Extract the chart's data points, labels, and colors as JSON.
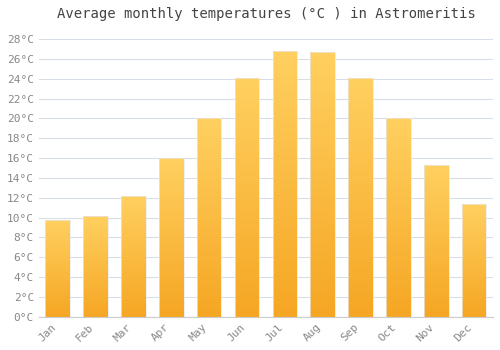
{
  "title": "Average monthly temperatures (°C ) in Astromeritis",
  "months": [
    "Jan",
    "Feb",
    "Mar",
    "Apr",
    "May",
    "Jun",
    "Jul",
    "Aug",
    "Sep",
    "Oct",
    "Nov",
    "Dec"
  ],
  "values": [
    9.8,
    10.2,
    12.2,
    16.0,
    20.0,
    24.1,
    26.8,
    26.7,
    24.1,
    20.0,
    15.3,
    11.4
  ],
  "bar_color_bottom": "#F5A623",
  "bar_color_top": "#FFD060",
  "bar_edge_color": "#E8E8E8",
  "background_color": "#ffffff",
  "plot_bg_color": "#ffffff",
  "grid_color": "#d8dde8",
  "ylim": [
    0,
    29
  ],
  "ytick_step": 2,
  "title_fontsize": 10,
  "tick_fontsize": 8,
  "font_family": "monospace",
  "title_color": "#444444",
  "tick_color": "#888888",
  "bar_width": 0.65
}
